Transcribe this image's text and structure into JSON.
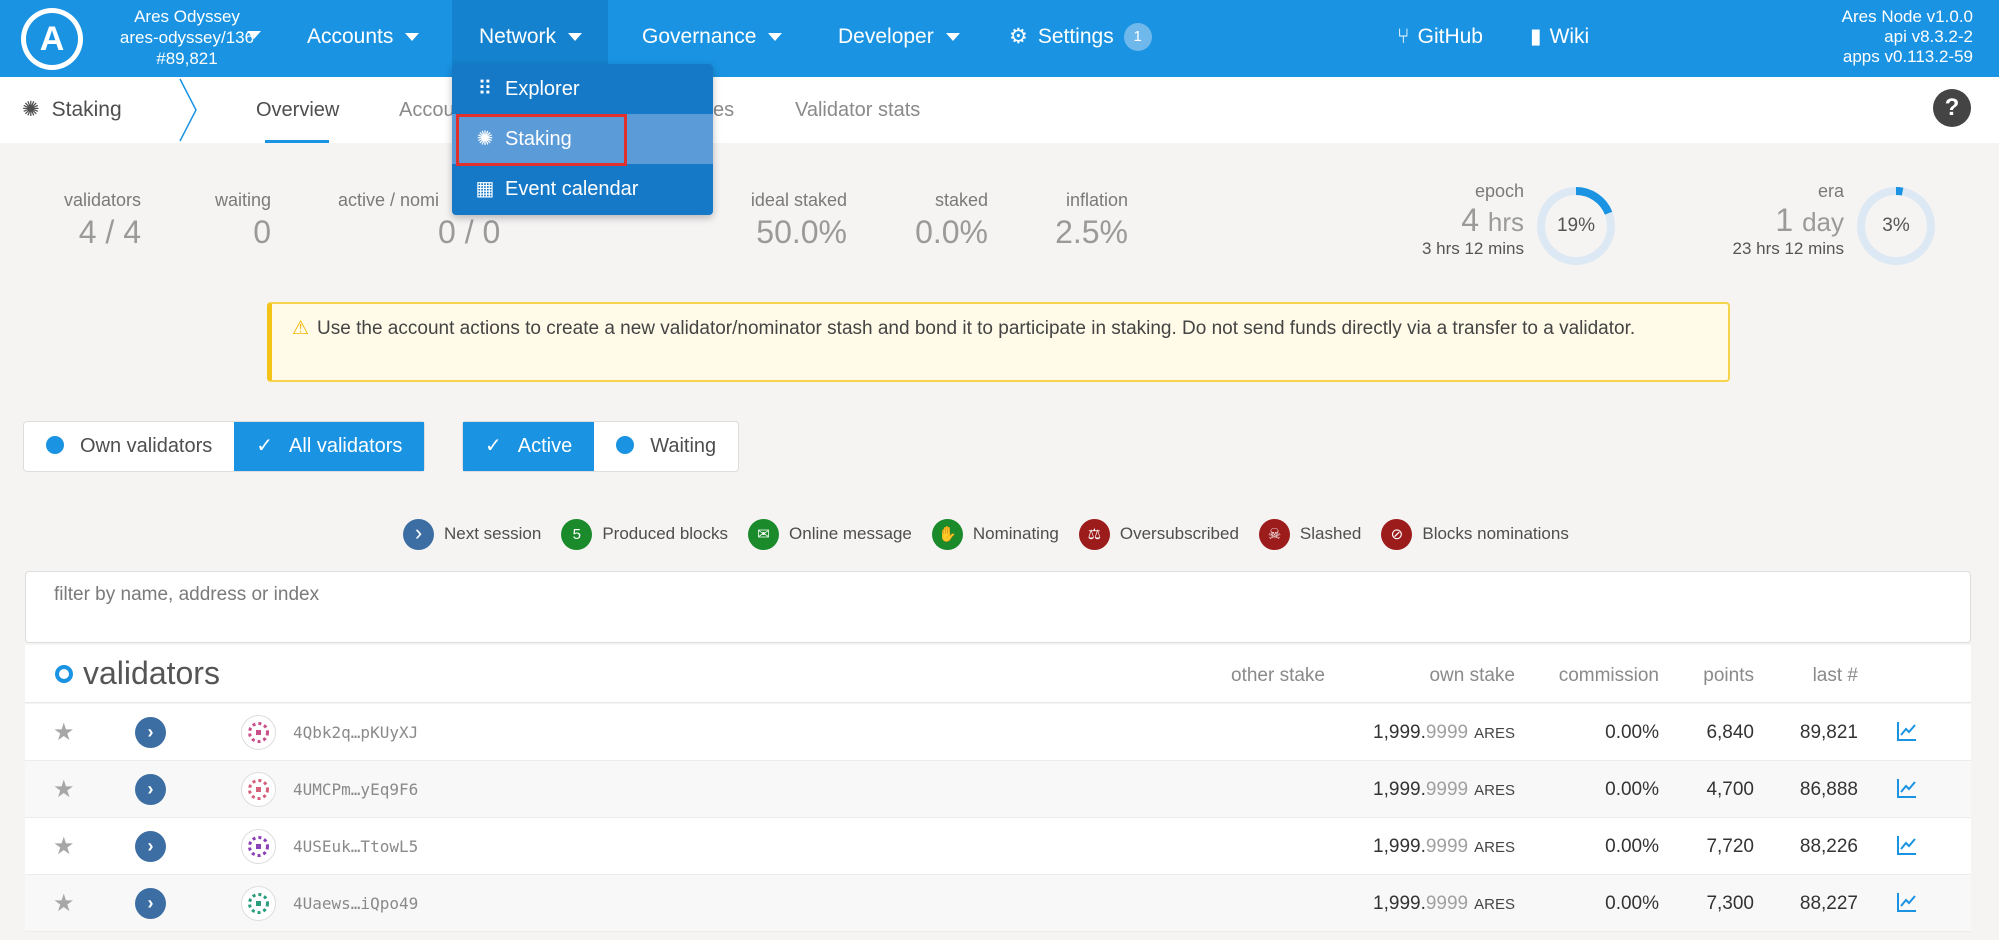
{
  "topbar": {
    "chain_name": "Ares Odyssey",
    "chain_spec": "ares-odyssey/136",
    "block": "#89,821",
    "nav": {
      "accounts": "Accounts",
      "network": "Network",
      "governance": "Governance",
      "developer": "Developer",
      "settings": "Settings",
      "settings_badge": "1",
      "github": "GitHub",
      "wiki": "Wiki"
    },
    "version": [
      "Ares Node v1.0.0",
      "api v8.3.2-2",
      "apps v0.113.2-59"
    ]
  },
  "dropdown": {
    "items": [
      {
        "label": "Explorer",
        "icon": "grid-icon"
      },
      {
        "label": "Staking",
        "icon": "gear-icon"
      },
      {
        "label": "Event calendar",
        "icon": "calendar-icon"
      }
    ]
  },
  "subbar": {
    "title": "Staking",
    "tabs": [
      "Overview",
      "Accou",
      "es",
      "Validator stats"
    ]
  },
  "summary": {
    "validators": {
      "label": "validators",
      "value": "4 / 4"
    },
    "waiting": {
      "label": "waiting",
      "value": "0"
    },
    "active_nominators": {
      "label": "active / nomi",
      "value": "0 / 0"
    },
    "ideal_staked": {
      "label": "ideal staked",
      "value": "50.0%"
    },
    "staked": {
      "label": "staked",
      "value": "0.0%"
    },
    "inflation": {
      "label": "inflation",
      "value": "2.5%"
    },
    "epoch": {
      "label": "epoch",
      "big_num": "4",
      "big_unit": "hrs",
      "small": "3 hrs 12 mins",
      "percent": "19%",
      "fraction": 0.19
    },
    "era": {
      "label": "era",
      "big_num": "1",
      "big_unit": "day",
      "small": "23 hrs 12 mins",
      "percent": "3%",
      "fraction": 0.03
    }
  },
  "warning": "Use the account actions to create a new validator/nominator stash and bond it to participate in staking. Do not send funds directly via a transfer to a validator.",
  "toggles": {
    "own_validators": "Own validators",
    "all_validators": "All validators",
    "active": "Active",
    "waiting": "Waiting"
  },
  "legend": [
    {
      "label": "Next session",
      "icon": "chevron-right-icon",
      "color": "#3c6ea4",
      "glyph": "›"
    },
    {
      "label": "Produced blocks",
      "icon": "number-icon",
      "color": "#1a8a2a",
      "glyph": "5"
    },
    {
      "label": "Online message",
      "icon": "envelope-icon",
      "color": "#1a8a2a",
      "glyph": "✉"
    },
    {
      "label": "Nominating",
      "icon": "hand-icon",
      "color": "#1a8a2a",
      "glyph": "✋"
    },
    {
      "label": "Oversubscribed",
      "icon": "balance-scale-icon",
      "color": "#9c1c1c",
      "glyph": "⚖"
    },
    {
      "label": "Slashed",
      "icon": "skull-icon",
      "color": "#9c1c1c",
      "glyph": "☠"
    },
    {
      "label": "Blocks nominations",
      "icon": "user-slash-icon",
      "color": "#9c1c1c",
      "glyph": "⊘"
    }
  ],
  "filter": {
    "placeholder": "filter by name, address or index"
  },
  "table": {
    "title": "validators",
    "headers": {
      "other_stake": "other stake",
      "own_stake": "own stake",
      "commission": "commission",
      "points": "points",
      "last": "last #"
    },
    "rows": [
      {
        "address": "4Qbk2q…pKUyXJ",
        "stake_int": "1,999.",
        "stake_dec": "9999",
        "unit": "ARES",
        "commission": "0.00%",
        "points": "6,840",
        "last": "89,821",
        "identicon_color": "#c94f8a"
      },
      {
        "address": "4UMCPm…yEq9F6",
        "stake_int": "1,999.",
        "stake_dec": "9999",
        "unit": "ARES",
        "commission": "0.00%",
        "points": "4,700",
        "last": "86,888",
        "identicon_color": "#d5607a"
      },
      {
        "address": "4USEuk…TtowL5",
        "stake_int": "1,999.",
        "stake_dec": "9999",
        "unit": "ARES",
        "commission": "0.00%",
        "points": "7,720",
        "last": "88,226",
        "identicon_color": "#8b3fb5"
      },
      {
        "address": "4Uaews…iQpo49",
        "stake_int": "1,999.",
        "stake_dec": "9999",
        "unit": "ARES",
        "commission": "0.00%",
        "points": "7,300",
        "last": "88,227",
        "identicon_color": "#2a9d7c"
      }
    ]
  },
  "colors": {
    "brand": "#1a93e2",
    "highlight": "#e0312f",
    "warning_border": "#f5d34a"
  }
}
